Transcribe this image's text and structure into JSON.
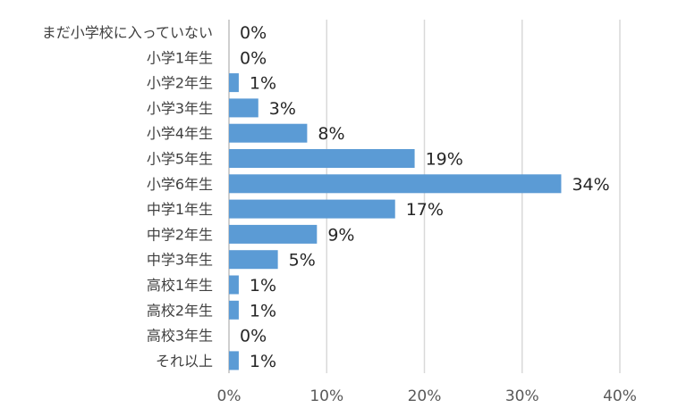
{
  "chart_data": {
    "type": "bar",
    "orientation": "horizontal",
    "categories": [
      "まだ小学校に入っていない",
      "小学1年生",
      "小学2年生",
      "小学3年生",
      "小学4年生",
      "小学5年生",
      "小学6年生",
      "中学1年生",
      "中学2年生",
      "中学3年生",
      "高校1年生",
      "高校2年生",
      "高校3年生",
      "それ以上"
    ],
    "values": [
      0,
      0,
      1,
      3,
      8,
      19,
      34,
      17,
      9,
      5,
      1,
      1,
      0,
      1
    ],
    "data_labels": [
      "0%",
      "0%",
      "1%",
      "3%",
      "8%",
      "19%",
      "34%",
      "17%",
      "9%",
      "5%",
      "1%",
      "1%",
      "0%",
      "1%"
    ],
    "x_ticks": [
      "0%",
      "10%",
      "20%",
      "30%",
      "40%"
    ],
    "xlim": [
      0,
      40
    ],
    "grid": "vertical",
    "bar_color": "#5b9bd5"
  }
}
